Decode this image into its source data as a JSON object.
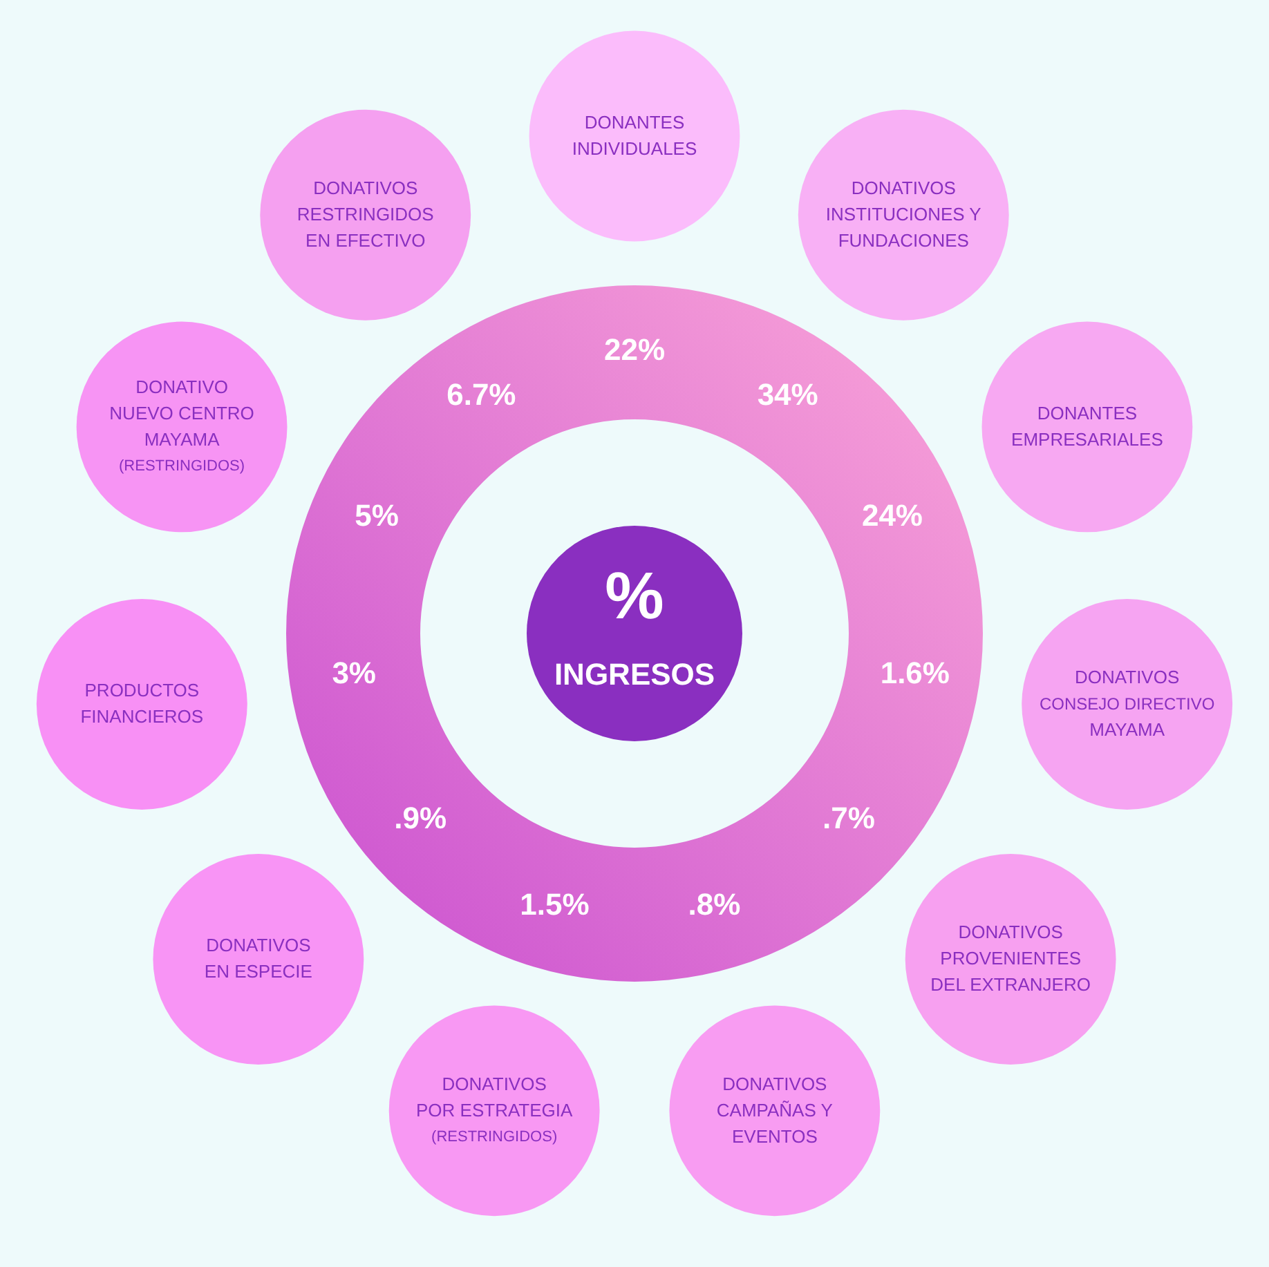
{
  "chart_data": {
    "type": "other",
    "title": "%\nINGRESOS",
    "categories": [
      "DONANTES\nINDIVIDUALES",
      "DONATIVOS\nINSTITUCIONES Y\nFUNDACIONES",
      "DONANTES\nEMPRESARIALES",
      "DONATIVOS\nCONSEJO DIRECTIVO\nMAYAMA",
      "DONATIVOS\nPROVENIENTES\nDEL EXTRANJERO",
      "DONATIVOS\nCAMPAÑAS Y\nEVENTOS",
      "DONATIVOS\nPOR ESTRATEGIA\n(RESTRINGIDOS)",
      "DONATIVOS\nEN ESPECIE",
      "PRODUCTOS\nFINANCIEROS",
      "DONATIVO\nNUEVO CENTRO\nMAYAMA\n(RESTRINGIDOS)",
      "DONATIVOS\nRESTRINGIDOS\nEN EFECTIVO"
    ],
    "values": [
      22,
      34,
      24,
      1.6,
      0.7,
      0.8,
      1.5,
      0.9,
      3,
      5,
      6.7
    ],
    "value_labels": [
      "22%",
      "34%",
      "24%",
      "1.6%",
      ".7%",
      ".8%",
      "1.5%",
      ".9%",
      "3%",
      "5%",
      "6.7%"
    ],
    "colors": [
      "#fbbcfb",
      "#f8b0f5",
      "#f7a8f2",
      "#f6a4f2",
      "#f7a0f0",
      "#f89cf2",
      "#f898f3",
      "#f894f5",
      "#f890f5",
      "#f794f4",
      "#f5a0f0"
    ]
  }
}
